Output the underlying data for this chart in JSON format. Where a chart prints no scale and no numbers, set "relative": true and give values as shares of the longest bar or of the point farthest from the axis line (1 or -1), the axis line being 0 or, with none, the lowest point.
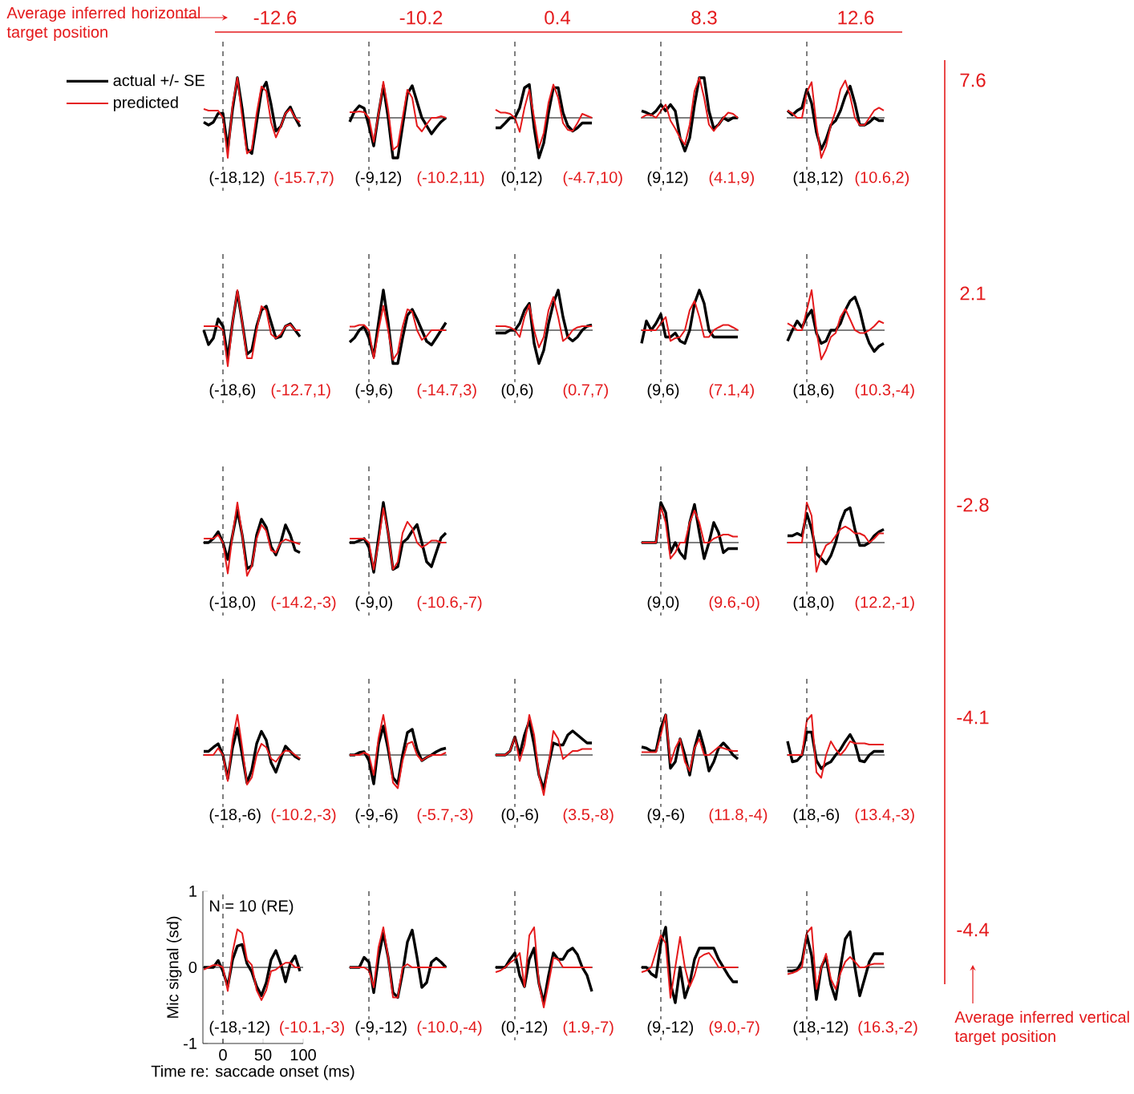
{
  "chart_data": [
    {
      "type": "other",
      "color": "#e41a1c",
      "annotations": [
        "Average inferred horizontal target position",
        "-12.6",
        "-10.2",
        "0.4",
        "8.3",
        "12.6",
        "Average inferred vertical target position",
        "7.6",
        "2.1",
        "-2.8",
        "-4.1",
        "-4.4"
      ]
    },
    {
      "type": "line",
      "relative": true,
      "categories": [
        null,
        null,
        null,
        null,
        null,
        null,
        null,
        null,
        null,
        null,
        null,
        null,
        null,
        null,
        null,
        null,
        null,
        null,
        null,
        null,
        null
      ],
      "tick_labels": false,
      "legend": "top left",
      "annotations": [
        "(-18,12)",
        "(-15.7,7)"
      ],
      "series": [
        {
          "name": "actual +/- SE",
          "color": "#000000",
          "values": [
            -0.11,
            -0.18,
            -0.11,
            0.11,
            0.11,
            -0.78,
            0.22,
            1,
            0.22,
            -0.78,
            -0.89,
            -0.11,
            0.67,
            0.89,
            0.33,
            -0.33,
            -0.22,
            0.11,
            0.27,
            0,
            -0.22
          ]
        },
        {
          "name": "predicted",
          "color": "#e41a1c",
          "values": [
            0.22,
            0.18,
            0.18,
            0.18,
            0,
            -1,
            0.33,
            1,
            0,
            -0.89,
            -0.78,
            0.11,
            0.78,
            0.67,
            -0.11,
            -0.49,
            -0.22,
            0.11,
            0.22,
            0,
            -0.11
          ]
        }
      ]
    },
    {
      "type": "line",
      "relative": true,
      "categories": [
        null,
        null,
        null,
        null,
        null,
        null,
        null,
        null,
        null,
        null,
        null,
        null,
        null,
        null,
        null,
        null,
        null,
        null,
        null,
        null,
        null
      ],
      "tick_labels": false,
      "annotations": [
        "(-9,12)",
        "(-10.2,11)"
      ],
      "series": [
        {
          "color": "#000000",
          "values": [
            -0.1,
            0.16,
            0.3,
            0.24,
            -0.2,
            -0.7,
            0.1,
            0.8,
            0,
            -1,
            -1,
            -0.2,
            0.6,
            0.8,
            0.4,
            0,
            -0.2,
            -0.4,
            -0.24,
            -0.1,
            0
          ]
        },
        {
          "color": "#e41a1c",
          "values": [
            0.14,
            0.14,
            0.16,
            0.14,
            0,
            -0.6,
            0.1,
            0.9,
            0.2,
            -0.8,
            -0.7,
            0,
            0.7,
            0.5,
            -0.2,
            -0.34,
            -0.16,
            0,
            0,
            0.04,
            0
          ]
        }
      ]
    },
    {
      "type": "line",
      "relative": true,
      "categories": [
        null,
        null,
        null,
        null,
        null,
        null,
        null,
        null,
        null,
        null,
        null,
        null,
        null,
        null,
        null,
        null,
        null,
        null,
        null,
        null,
        null
      ],
      "tick_labels": false,
      "annotations": [
        "(0,12)",
        "(-4.7,10)"
      ],
      "series": [
        {
          "color": "#000000",
          "values": [
            -0.25,
            -0.25,
            -0.13,
            0,
            0,
            0.25,
            0.75,
            0.83,
            -0.25,
            -1,
            -0.63,
            0.13,
            0.75,
            0.75,
            0.13,
            -0.2,
            -0.33,
            -0.25,
            -0.13,
            -0.13,
            -0.13
          ]
        },
        {
          "color": "#e41a1c",
          "values": [
            0.2,
            0.13,
            0.13,
            0.1,
            0,
            -0.35,
            0.25,
            0.7,
            0,
            -0.75,
            -0.38,
            0.38,
            0.83,
            0.5,
            -0.13,
            -0.3,
            -0.33,
            -0.13,
            0.1,
            0.05,
            0
          ]
        }
      ]
    },
    {
      "type": "line",
      "relative": true,
      "categories": [
        null,
        null,
        null,
        null,
        null,
        null,
        null,
        null,
        null,
        null,
        null,
        null,
        null,
        null,
        null,
        null,
        null,
        null,
        null,
        null,
        null
      ],
      "tick_labels": false,
      "annotations": [
        "(9,12)",
        "(4.1,9)"
      ],
      "series": [
        {
          "color": "#000000",
          "values": [
            0.17,
            0.13,
            0.07,
            0.17,
            0.33,
            0.17,
            0.33,
            0.17,
            -0.5,
            -0.83,
            -0.5,
            0.33,
            1,
            1,
            0.17,
            -0.27,
            -0.17,
            0,
            -0.07,
            0,
            0
          ]
        },
        {
          "color": "#e41a1c",
          "values": [
            0,
            0.07,
            0.07,
            0,
            0.17,
            0.33,
            -0.07,
            -0.27,
            -0.5,
            -0.67,
            -0.17,
            0.67,
            1,
            0.5,
            -0.17,
            -0.33,
            -0.17,
            0,
            0.13,
            0.1,
            0
          ]
        }
      ]
    },
    {
      "type": "line",
      "relative": true,
      "categories": [
        null,
        null,
        null,
        null,
        null,
        null,
        null,
        null,
        null,
        null,
        null,
        null,
        null,
        null,
        null,
        null,
        null,
        null,
        null,
        null,
        null
      ],
      "tick_labels": false,
      "annotations": [
        "(18,12)",
        "(10.6,2)"
      ],
      "series": [
        {
          "color": "#000000",
          "values": [
            0.18,
            0.07,
            0.18,
            0.25,
            0.71,
            0.36,
            -0.36,
            -0.79,
            -0.54,
            -0.18,
            -0.07,
            0.18,
            0.54,
            0.79,
            0.36,
            -0.18,
            -0.18,
            -0.11,
            0,
            -0.07,
            -0.07
          ]
        },
        {
          "color": "#e41a1c",
          "values": [
            0.18,
            0.11,
            0,
            0,
            0.64,
            0.89,
            -0.18,
            -1,
            -0.71,
            -0.18,
            0.18,
            0.71,
            0.93,
            0.54,
            0,
            -0.18,
            -0.18,
            0,
            0.18,
            0.25,
            0.18
          ]
        }
      ]
    },
    {
      "type": "line",
      "relative": true,
      "categories": [
        null,
        null,
        null,
        null,
        null,
        null,
        null,
        null,
        null,
        null,
        null,
        null,
        null,
        null,
        null,
        null,
        null,
        null,
        null,
        null,
        null
      ],
      "tick_labels": false,
      "annotations": [
        "(-18,6)",
        "(-12.7,1)"
      ],
      "series": [
        {
          "color": "#000000",
          "values": [
            0,
            -0.36,
            -0.2,
            0.28,
            0.1,
            -0.7,
            0.2,
            0.96,
            0.2,
            -0.6,
            -0.5,
            0.1,
            0.5,
            0.6,
            0.2,
            -0.2,
            -0.16,
            0.1,
            0.16,
            0,
            -0.16
          ]
        },
        {
          "color": "#e41a1c",
          "values": [
            0.1,
            0.1,
            0.1,
            0.1,
            0,
            -0.9,
            0.2,
            1,
            0.2,
            -0.7,
            -0.7,
            0,
            0.6,
            0.5,
            -0.1,
            -0.2,
            -0.1,
            0.1,
            0.14,
            0,
            0
          ]
        }
      ]
    },
    {
      "type": "line",
      "relative": true,
      "categories": [
        null,
        null,
        null,
        null,
        null,
        null,
        null,
        null,
        null,
        null,
        null,
        null,
        null,
        null,
        null,
        null,
        null,
        null,
        null,
        null,
        null
      ],
      "tick_labels": false,
      "annotations": [
        "(-9,6)",
        "(-14.7,3)"
      ],
      "series": [
        {
          "color": "#000000",
          "values": [
            -0.3,
            -0.19,
            0,
            0.09,
            -0.19,
            -0.65,
            0.19,
            1,
            0.19,
            -0.83,
            -0.83,
            -0.19,
            0.37,
            0.52,
            0.28,
            0,
            -0.28,
            -0.37,
            -0.19,
            0,
            0.19
          ]
        },
        {
          "color": "#e41a1c",
          "values": [
            0.09,
            0.09,
            0.13,
            0.13,
            0,
            -0.7,
            0,
            0.61,
            0,
            -0.74,
            -0.56,
            0.09,
            0.52,
            0.46,
            0,
            -0.24,
            -0.15,
            0,
            0,
            0,
            0
          ]
        }
      ]
    },
    {
      "type": "line",
      "relative": true,
      "categories": [
        null,
        null,
        null,
        null,
        null,
        null,
        null,
        null,
        null,
        null,
        null,
        null,
        null,
        null,
        null,
        null,
        null,
        null,
        null,
        null,
        null
      ],
      "tick_labels": false,
      "annotations": [
        "(0,6)",
        "(0.7,7)"
      ],
      "series": [
        {
          "color": "#000000",
          "values": [
            -0.07,
            -0.07,
            -0.07,
            0,
            0,
            0.17,
            0.5,
            0.67,
            -0.33,
            -0.83,
            -0.5,
            0.17,
            0.67,
            1,
            0.33,
            -0.17,
            -0.27,
            -0.17,
            0,
            0.1,
            0.13
          ]
        },
        {
          "color": "#e41a1c",
          "values": [
            0.1,
            0.1,
            0.1,
            0.07,
            0,
            -0.17,
            0.33,
            0.63,
            0,
            -0.43,
            -0.17,
            0.5,
            0.83,
            0.33,
            -0.27,
            -0.17,
            0,
            0.07,
            0.1,
            0.1,
            0.1
          ]
        }
      ]
    },
    {
      "type": "line",
      "relative": true,
      "categories": [
        null,
        null,
        null,
        null,
        null,
        null,
        null,
        null,
        null,
        null,
        null,
        null,
        null,
        null,
        null,
        null,
        null,
        null,
        null,
        null,
        null
      ],
      "tick_labels": false,
      "annotations": [
        "(9,6)",
        "(7.1,4)"
      ],
      "series": [
        {
          "color": "#000000",
          "values": [
            -0.33,
            0.23,
            0,
            0.17,
            0.4,
            -0.17,
            -0.17,
            -0.07,
            -0.27,
            -0.33,
            0,
            0.67,
            1,
            0.67,
            0,
            -0.17,
            -0.17,
            -0.17,
            -0.17,
            -0.17,
            -0.17
          ]
        },
        {
          "color": "#e41a1c",
          "values": [
            0,
            0,
            0,
            0,
            0.17,
            0.33,
            -0.27,
            -0.2,
            -0.17,
            0,
            0.5,
            0.73,
            0.33,
            -0.17,
            -0.17,
            0,
            0.07,
            0.13,
            0.13,
            0.07,
            0
          ]
        }
      ]
    },
    {
      "type": "line",
      "relative": true,
      "categories": [
        null,
        null,
        null,
        null,
        null,
        null,
        null,
        null,
        null,
        null,
        null,
        null,
        null,
        null,
        null,
        null,
        null,
        null,
        null,
        null,
        null
      ],
      "tick_labels": false,
      "annotations": [
        "(18,6)",
        "(10.3,-4)"
      ],
      "series": [
        {
          "color": "#000000",
          "values": [
            -0.27,
            0,
            0.23,
            0.07,
            0.33,
            0.5,
            -0.07,
            -0.33,
            -0.27,
            0,
            0,
            0.17,
            0.5,
            0.73,
            0.83,
            0.5,
            0,
            -0.33,
            -0.53,
            -0.4,
            -0.33
          ]
        },
        {
          "color": "#e41a1c",
          "values": [
            0.17,
            0.1,
            0,
            0,
            0.5,
            1,
            0,
            -0.73,
            -0.5,
            -0.17,
            -0.07,
            0.33,
            0.53,
            0.27,
            0,
            -0.07,
            -0.07,
            0,
            0.1,
            0.23,
            0.17
          ]
        }
      ]
    },
    {
      "type": "line",
      "relative": true,
      "categories": [
        null,
        null,
        null,
        null,
        null,
        null,
        null,
        null,
        null,
        null,
        null,
        null,
        null,
        null,
        null,
        null,
        null,
        null,
        null,
        null,
        null
      ],
      "tick_labels": false,
      "annotations": [
        "(-18,0)",
        "(-14.2,-3)"
      ],
      "series": [
        {
          "color": "#000000",
          "values": [
            0,
            0,
            0.1,
            0.27,
            0,
            -0.42,
            0.19,
            0.81,
            0.19,
            -0.65,
            -0.58,
            0.19,
            0.58,
            0.38,
            -0.1,
            -0.31,
            0,
            0.44,
            0.19,
            -0.19,
            -0.25
          ]
        },
        {
          "color": "#e41a1c",
          "values": [
            0.1,
            0.1,
            0.1,
            0.19,
            0,
            -0.77,
            0.19,
            1,
            0.19,
            -0.83,
            -0.58,
            0.1,
            0.44,
            0.29,
            -0.19,
            -0.25,
            0,
            0.08,
            0.04,
            0,
            -0.04
          ]
        }
      ]
    },
    {
      "type": "line",
      "relative": true,
      "categories": [
        null,
        null,
        null,
        null,
        null,
        null,
        null,
        null,
        null,
        null,
        null,
        null,
        null,
        null,
        null,
        null,
        null,
        null,
        null,
        null,
        null
      ],
      "tick_labels": false,
      "annotations": [
        "(-9,0)",
        "(-10.6,-7)"
      ],
      "series": [
        {
          "color": "#000000",
          "values": [
            0,
            0,
            0.05,
            0.1,
            -0.12,
            -0.74,
            0.12,
            1,
            0.24,
            -0.67,
            -0.6,
            0,
            0.1,
            0.29,
            0.45,
            0,
            -0.48,
            -0.6,
            -0.24,
            0.12,
            0.24
          ]
        },
        {
          "color": "#e41a1c",
          "values": [
            0.1,
            0.1,
            0.1,
            0.1,
            0,
            -0.67,
            0,
            0.86,
            0.24,
            -0.67,
            -0.48,
            0.24,
            0.52,
            0.36,
            0,
            -0.12,
            -0.05,
            0.05,
            0.05,
            0,
            0
          ]
        }
      ]
    },
    {
      "type": "line",
      "relative": true,
      "categories": [
        null,
        null,
        null,
        null,
        null,
        null,
        null,
        null,
        null,
        null,
        null,
        null,
        null,
        null,
        null,
        null,
        null,
        null,
        null,
        null,
        null
      ],
      "tick_labels": false,
      "annotations": [
        "(9,0)",
        "(9.6,-0)"
      ],
      "series": [
        {
          "color": "#000000",
          "values": [
            0,
            0,
            0,
            0,
            1,
            0.75,
            -0.25,
            0,
            -0.25,
            -0.4,
            0.5,
            0.95,
            0.25,
            -0.4,
            0,
            0.5,
            0.25,
            -0.25,
            -0.15,
            -0.15,
            -0.15
          ]
        },
        {
          "color": "#e41a1c",
          "values": [
            0,
            0,
            0,
            0,
            0.9,
            0.5,
            -0.4,
            -0.25,
            0,
            0,
            0.5,
            0.8,
            0.5,
            0,
            0,
            0.1,
            0.15,
            0.2,
            0.2,
            0.15,
            0.15
          ]
        }
      ]
    },
    {
      "type": "line",
      "relative": true,
      "categories": [
        null,
        null,
        null,
        null,
        null,
        null,
        null,
        null,
        null,
        null,
        null,
        null,
        null,
        null,
        null,
        null,
        null,
        null,
        null,
        null,
        null
      ],
      "tick_labels": false,
      "annotations": [
        "(18,0)",
        "(12.2,-1)"
      ],
      "series": [
        {
          "color": "#000000",
          "values": [
            0.17,
            0.17,
            0.23,
            0.17,
            0.73,
            0.33,
            -0.27,
            -0.4,
            -0.53,
            -0.33,
            0,
            0.5,
            0.8,
            0.87,
            0.33,
            -0.07,
            -0.07,
            0,
            0.17,
            0.27,
            0.33
          ]
        },
        {
          "color": "#e41a1c",
          "values": [
            0,
            0,
            0,
            0,
            1,
            0.67,
            -0.73,
            -0.33,
            -0.07,
            0,
            0.17,
            0.33,
            0.4,
            0.33,
            0.23,
            0.23,
            0.17,
            0,
            0.1,
            0.23,
            0.23
          ]
        }
      ]
    },
    {
      "type": "line",
      "relative": true,
      "categories": [
        null,
        null,
        null,
        null,
        null,
        null,
        null,
        null,
        null,
        null,
        null,
        null,
        null,
        null,
        null,
        null,
        null,
        null,
        null,
        null,
        null
      ],
      "tick_labels": false,
      "annotations": [
        "(-18,-6)",
        "(-10.2,-3)"
      ],
      "series": [
        {
          "color": "#000000",
          "values": [
            0.09,
            0.09,
            0.19,
            0.28,
            0,
            -0.59,
            0.19,
            0.67,
            0,
            -0.7,
            -0.37,
            0.28,
            0.59,
            0.37,
            -0.19,
            -0.43,
            -0.09,
            0.22,
            0.09,
            -0.04,
            -0.11
          ]
        },
        {
          "color": "#e41a1c",
          "values": [
            0,
            0,
            0,
            0.17,
            0,
            -0.65,
            0.37,
            1,
            0.19,
            -0.74,
            -0.56,
            0,
            0.28,
            0.19,
            -0.09,
            -0.17,
            0,
            0.11,
            0.09,
            0,
            -0.09
          ]
        }
      ]
    },
    {
      "type": "line",
      "relative": true,
      "categories": [
        null,
        null,
        null,
        null,
        null,
        null,
        null,
        null,
        null,
        null,
        null,
        null,
        null,
        null,
        null,
        null,
        null,
        null,
        null,
        null,
        null
      ],
      "tick_labels": false,
      "annotations": [
        "(-9,-6)",
        "(-5.7,-3)"
      ],
      "series": [
        {
          "color": "#000000",
          "values": [
            0,
            0,
            0.06,
            0.08,
            -0.14,
            -0.72,
            0.28,
            0.72,
            0.14,
            -0.56,
            -0.72,
            0,
            0.56,
            0.64,
            0.14,
            -0.14,
            -0.06,
            0,
            0.08,
            0.14,
            0.17
          ]
        },
        {
          "color": "#e41a1c",
          "values": [
            0,
            0,
            0,
            0.06,
            0,
            -0.5,
            0.42,
            1,
            0.28,
            -0.69,
            -0.83,
            -0.14,
            0.28,
            0.33,
            0,
            -0.14,
            -0.06,
            0,
            0,
            0,
            0.06
          ]
        }
      ]
    },
    {
      "type": "line",
      "relative": true,
      "categories": [
        null,
        null,
        null,
        null,
        null,
        null,
        null,
        null,
        null,
        null,
        null,
        null,
        null,
        null,
        null,
        null,
        null,
        null,
        null,
        null,
        null
      ],
      "tick_labels": false,
      "annotations": [
        "(0,-6)",
        "(3.5,-8)"
      ],
      "series": [
        {
          "color": "#000000",
          "values": [
            0,
            0,
            0,
            0.1,
            0.45,
            0,
            0.5,
            0.85,
            0.25,
            -0.5,
            -0.85,
            -0.25,
            0.3,
            0.25,
            0.25,
            0.5,
            0.6,
            0.5,
            0.4,
            0.3,
            0.3
          ]
        },
        {
          "color": "#e41a1c",
          "values": [
            0,
            0,
            0,
            0.1,
            0.45,
            -0.15,
            0.25,
            1,
            0.5,
            -0.5,
            -1,
            -0.25,
            0.6,
            0.4,
            -0.1,
            0,
            0.1,
            0.1,
            0.15,
            0.15,
            0.15
          ]
        }
      ]
    },
    {
      "type": "line",
      "relative": true,
      "categories": [
        null,
        null,
        null,
        null,
        null,
        null,
        null,
        null,
        null,
        null,
        null,
        null,
        null,
        null,
        null,
        null,
        null,
        null,
        null,
        null,
        null
      ],
      "tick_labels": false,
      "annotations": [
        "(9,-6)",
        "(11.8,-4)"
      ],
      "series": [
        {
          "color": "#000000",
          "values": [
            0.2,
            0.17,
            0.1,
            0.1,
            0.67,
            1,
            -0.33,
            -0.17,
            0.4,
            0,
            -0.5,
            0.17,
            0.6,
            0.17,
            -0.4,
            -0.17,
            0.17,
            0.3,
            0.17,
            0,
            -0.1
          ]
        },
        {
          "color": "#e41a1c",
          "values": [
            0.07,
            0.07,
            0.07,
            0.07,
            0.5,
            1,
            -0.2,
            0.17,
            0.4,
            -0.17,
            -0.4,
            0.17,
            0.4,
            0,
            0,
            0.1,
            0.2,
            0.17,
            0.13,
            0.1,
            0.1
          ]
        }
      ]
    },
    {
      "type": "line",
      "relative": true,
      "categories": [
        null,
        null,
        null,
        null,
        null,
        null,
        null,
        null,
        null,
        null,
        null,
        null,
        null,
        null,
        null,
        null,
        null,
        null,
        null,
        null,
        null
      ],
      "tick_labels": false,
      "annotations": [
        "(18,-6)",
        "(13.4,-3)"
      ],
      "series": [
        {
          "color": "#000000",
          "values": [
            0.34,
            -0.17,
            -0.14,
            0,
            0.57,
            0.57,
            -0.14,
            -0.34,
            -0.23,
            -0.17,
            0,
            0.14,
            0.34,
            0.51,
            0.29,
            -0.14,
            -0.17,
            0,
            0.09,
            0.09,
            0.09
          ]
        },
        {
          "color": "#e41a1c",
          "values": [
            0,
            0,
            0,
            0,
            0.86,
            1,
            -0.43,
            -0.57,
            0,
            0.34,
            0.14,
            0,
            0.14,
            0.34,
            0.29,
            0.29,
            0.29,
            0.26,
            0.26,
            0.26,
            0.26
          ]
        }
      ]
    },
    {
      "type": "line",
      "x": [
        -24,
        -18,
        -12,
        -6,
        0,
        6,
        12,
        18,
        24,
        30,
        36,
        42,
        48,
        54,
        60,
        66,
        72,
        78,
        84,
        90,
        96
      ],
      "xlim": [
        -25,
        100
      ],
      "ylim": [
        -1,
        1
      ],
      "xticks": [
        0,
        50,
        100
      ],
      "yticks": [
        -1,
        0,
        1
      ],
      "xlabel": "Time re: saccade onset (ms)",
      "ylabel": "Mic signal (sd)",
      "annotations": [
        "(-18,-12)",
        "(-10.1,-3)",
        "N = 10 (RE)"
      ],
      "ref_lines": [
        {
          "axis": "x",
          "value": 0,
          "line_style": "dashed",
          "color": "#000000"
        },
        {
          "axis": "y",
          "value": 0,
          "line_style": "solid",
          "color": "#000000"
        }
      ],
      "series": [
        {
          "color": "#000000",
          "values": [
            0.0,
            0.0,
            0.0,
            0.09,
            -0.05,
            -0.25,
            0.1,
            0.28,
            0.3,
            0.05,
            -0.06,
            -0.25,
            -0.37,
            -0.2,
            0.1,
            0.22,
            0.05,
            -0.19,
            0.05,
            0.15,
            -0.05
          ]
        },
        {
          "color": "#e41a1c",
          "values": [
            -0.03,
            0.0,
            0.03,
            0.03,
            0.0,
            -0.31,
            0.2,
            0.5,
            0.45,
            0.1,
            0.03,
            -0.3,
            -0.43,
            -0.3,
            -0.05,
            -0.03,
            0.02,
            0.06,
            0.06,
            0.0,
            0.0
          ]
        }
      ]
    },
    {
      "type": "line",
      "relative": true,
      "categories": [
        null,
        null,
        null,
        null,
        null,
        null,
        null,
        null,
        null,
        null,
        null,
        null,
        null,
        null,
        null,
        null,
        null,
        null,
        null,
        null,
        null
      ],
      "tick_labels": false,
      "annotations": [
        "(-9,-12)",
        "(-10.0,-4)"
      ],
      "series": [
        {
          "color": "#000000",
          "values": [
            0,
            0,
            0,
            0.25,
            0.13,
            -0.63,
            0.25,
            0.85,
            0.25,
            -0.63,
            -0.75,
            -0.13,
            0.63,
            0.93,
            0.25,
            -0.5,
            -0.38,
            0.13,
            0.23,
            0.13,
            0
          ]
        },
        {
          "color": "#e41a1c",
          "values": [
            0,
            0,
            0,
            0,
            -0.08,
            -0.5,
            0.5,
            1,
            0.25,
            -0.75,
            -0.75,
            0,
            0.08,
            0,
            0,
            0,
            0,
            0,
            0,
            0,
            0
          ]
        }
      ]
    },
    {
      "type": "line",
      "relative": true,
      "categories": [
        null,
        null,
        null,
        null,
        null,
        null,
        null,
        null,
        null,
        null,
        null,
        null,
        null,
        null,
        null,
        null,
        null,
        null,
        null,
        null,
        null
      ],
      "tick_labels": false,
      "annotations": [
        "(0,-12)",
        "(1.9,-7)"
      ],
      "series": [
        {
          "color": "#000000",
          "values": [
            0,
            0,
            0,
            0.2,
            0.36,
            -0.2,
            -0.48,
            0.2,
            0.48,
            -0.4,
            -0.88,
            -0.2,
            0.36,
            0.2,
            0.2,
            0.4,
            0.48,
            0.32,
            0,
            -0.2,
            -0.6
          ]
        },
        {
          "color": "#e41a1c",
          "values": [
            -0.12,
            -0.08,
            0,
            0.12,
            0.2,
            0.36,
            -0.48,
            0.8,
            1,
            -0.4,
            -1,
            -0.4,
            0.24,
            0.2,
            0,
            0,
            0,
            0,
            0,
            0,
            0
          ]
        }
      ]
    },
    {
      "type": "line",
      "relative": true,
      "categories": [
        null,
        null,
        null,
        null,
        null,
        null,
        null,
        null,
        null,
        null,
        null,
        null,
        null,
        null,
        null,
        null,
        null,
        null,
        null,
        null,
        null
      ],
      "tick_labels": false,
      "annotations": [
        "(9,-12)",
        "(9.0,-7)"
      ],
      "series": [
        {
          "color": "#000000",
          "values": [
            0,
            0,
            -0.16,
            -0.24,
            0.6,
            1,
            -0.4,
            -0.88,
            0,
            -0.76,
            -0.4,
            0.2,
            0.48,
            0.48,
            0.48,
            0.48,
            0.2,
            0,
            -0.2,
            -0.36,
            -0.36
          ]
        },
        {
          "color": "#e41a1c",
          "values": [
            -0.12,
            -0.08,
            0,
            0.4,
            0.8,
            0.6,
            -0.76,
            0,
            0.76,
            0,
            -0.48,
            -0.2,
            0.24,
            0.32,
            0.36,
            0.2,
            0,
            0,
            0,
            0,
            0
          ]
        }
      ]
    },
    {
      "type": "line",
      "relative": true,
      "categories": [
        null,
        null,
        null,
        null,
        null,
        null,
        null,
        null,
        null,
        null,
        null,
        null,
        null,
        null,
        null,
        null,
        null,
        null,
        null,
        null,
        null
      ],
      "tick_labels": false,
      "annotations": [
        "(18,-12)",
        "(16.3,-2)"
      ],
      "series": [
        {
          "color": "#000000",
          "values": [
            -0.09,
            -0.09,
            -0.06,
            0.14,
            0.8,
            0.29,
            -0.8,
            0,
            0.26,
            -0.43,
            -0.8,
            0,
            0.71,
            0.89,
            0,
            -0.71,
            -0.29,
            0.14,
            0.34,
            0.34,
            0.34
          ]
        },
        {
          "color": "#e41a1c",
          "values": [
            -0.17,
            -0.14,
            -0.09,
            0,
            0.86,
            1,
            -0.54,
            0,
            0.34,
            -0.29,
            -0.54,
            -0.14,
            0.14,
            0.26,
            0.14,
            0,
            0,
            0.06,
            0.09,
            0.09,
            0.09
          ]
        }
      ]
    }
  ]
}
